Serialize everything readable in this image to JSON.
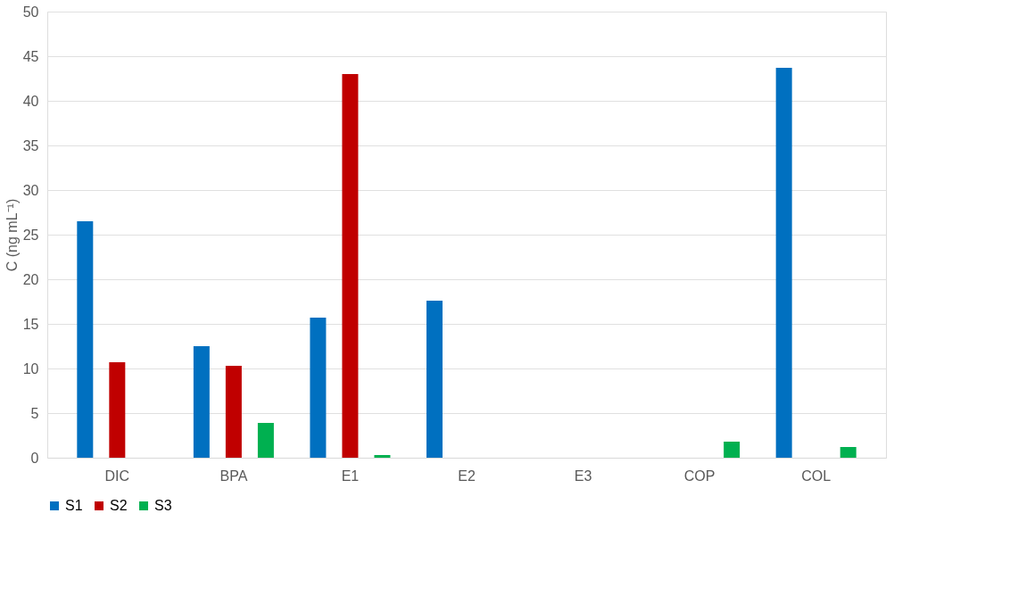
{
  "chart_data": {
    "type": "bar",
    "ylabel": "C (ng mL⁻¹)",
    "categories": [
      "DIC",
      "BPA",
      "E1",
      "E2",
      "E3",
      "COP",
      "COL"
    ],
    "series": [
      {
        "name": "S1",
        "color": "#0070c0",
        "values": [
          26.5,
          12.5,
          15.7,
          17.6,
          0,
          0,
          43.7
        ]
      },
      {
        "name": "S2",
        "color": "#c00000",
        "values": [
          10.7,
          10.3,
          43.0,
          0,
          0,
          0,
          0
        ]
      },
      {
        "name": "S3",
        "color": "#00b050",
        "values": [
          0,
          3.9,
          0.3,
          0,
          0,
          1.8,
          1.2
        ]
      }
    ],
    "ylim": [
      0,
      50
    ],
    "yticks": [
      0,
      5,
      10,
      15,
      20,
      25,
      30,
      35,
      40,
      45,
      50
    ],
    "grid": "y",
    "legend": "bottom"
  }
}
